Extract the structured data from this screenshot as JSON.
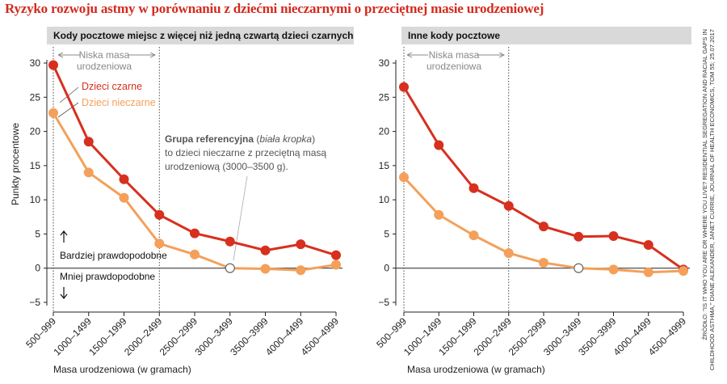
{
  "title": "Ryzyko rozwoju astmy w porównaniu z dziećmi nieczarnymi o przeciętnej masie urodzeniowej",
  "source": "ŹRÓDŁO: \"IS IT WHO YOU ARE OR WHERE YOU LIVE? RESIDENTIAL SEGREGATION AND RACIAL GAPS IN CHILDHOOD ASTHMA,\" DIANE ALEXANDER, JANET CURRIE, JOURNAL OF HEALTH ECONOMICS, TOM 55; 25.07.2017",
  "colors": {
    "black_children": "#d7301f",
    "nonblack_children": "#f4a05a",
    "header_bg": "#d9d9d9",
    "title": "#d42a1e"
  },
  "chart_data": [
    {
      "type": "line",
      "panel_title": "Kody pocztowe miejsc z więcej niż jedną czwartą dzieci czarnych",
      "categories": [
        "500–999",
        "1000–1499",
        "1500–1999",
        "2000–2499",
        "2500–2999",
        "3000–3499",
        "3500–3999",
        "4000–4499",
        "4500–4999"
      ],
      "xlabel": "Masa urodzeniowa (w gramach)",
      "ylabel": "Punkty procentowe",
      "ylim": [
        -5,
        30
      ],
      "yticks": [
        30,
        25,
        20,
        15,
        10,
        5,
        0,
        -5
      ],
      "series": [
        {
          "name": "Dzieci czarne",
          "color": "#d7301f",
          "values": [
            29.7,
            18.5,
            13.0,
            7.8,
            5.1,
            3.9,
            2.6,
            3.5,
            1.9
          ]
        },
        {
          "name": "Dzieci nieczarne",
          "color": "#f4a05a",
          "values": [
            22.7,
            14.0,
            10.3,
            3.6,
            2.0,
            0.0,
            -0.1,
            -0.3,
            0.5
          ]
        }
      ],
      "reference_index": 5,
      "low_weight_label": "Niska masa urodzeniowa",
      "low_weight_line1": "Niska masa",
      "low_weight_line2": "urodzeniowa",
      "more_likely": "Bardziej prawdopodobne",
      "less_likely": "Mniej prawdopodobne",
      "annotation": {
        "bold": "Grupa referencyjna",
        "open": " (",
        "italic": "biała kropka",
        "close": ")",
        "line2": "to dzieci nieczarne z przeciętną masą",
        "line3": "urodzeniową (3000–3500 g)."
      }
    },
    {
      "type": "line",
      "panel_title": "Inne kody pocztowe",
      "categories": [
        "500–999",
        "1000–1499",
        "1500–1999",
        "2000–2499",
        "2500–2999",
        "3000–3499",
        "3500–3999",
        "4000–4499",
        "4500–4999"
      ],
      "xlabel": "Masa urodzeniowa (w gramach)",
      "ylim": [
        -5,
        30
      ],
      "yticks": [
        30,
        25,
        20,
        15,
        10,
        5,
        0,
        -5
      ],
      "series": [
        {
          "color": "#d7301f",
          "values": [
            26.5,
            18.0,
            11.7,
            9.1,
            6.1,
            4.6,
            4.7,
            3.4,
            -0.2
          ]
        },
        {
          "color": "#f4a05a",
          "values": [
            13.3,
            7.8,
            4.8,
            2.2,
            0.8,
            0.0,
            -0.2,
            -0.6,
            -0.4
          ]
        }
      ],
      "reference_index": 5,
      "low_weight_line1": "Niska masa",
      "low_weight_line2": "urodzeniowa"
    }
  ]
}
